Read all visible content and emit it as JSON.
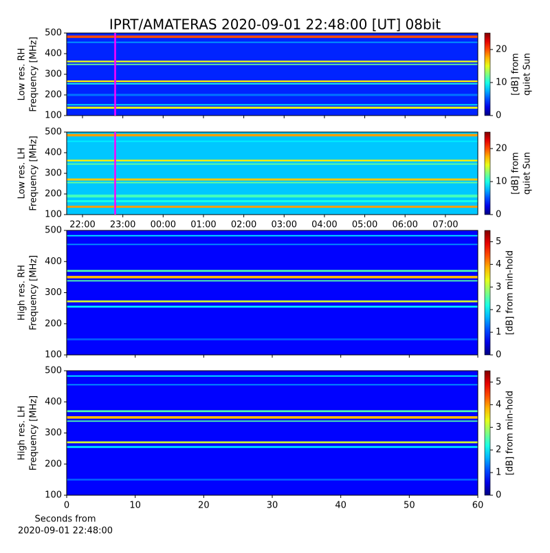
{
  "chart_data": [
    {
      "type": "heatmap",
      "title": "IPRT/AMATERAS 2020-09-01 22:48:00 [UT]   08bit",
      "ylabel": [
        "Low res. RH",
        "Frequency [MHz]"
      ],
      "ylim": [
        100,
        500
      ],
      "yticks": [
        100,
        200,
        300,
        400,
        500
      ],
      "colormap": "jet",
      "clim": [
        0,
        25
      ],
      "cticks": [
        0,
        10,
        20
      ],
      "clabel": [
        "[dB] from",
        "quiet Sun"
      ],
      "background": 4,
      "bands": [
        {
          "freq": 482,
          "width": 12,
          "level": 20
        },
        {
          "freq": 455,
          "width": 6,
          "level": 7
        },
        {
          "freq": 362,
          "width": 8,
          "level": 15
        },
        {
          "freq": 348,
          "width": 6,
          "level": 12
        },
        {
          "freq": 266,
          "width": 8,
          "level": 16
        },
        {
          "freq": 254,
          "width": 6,
          "level": 10
        },
        {
          "freq": 200,
          "width": 10,
          "level": 6
        },
        {
          "freq": 152,
          "width": 6,
          "level": 9
        },
        {
          "freq": 138,
          "width": 10,
          "level": 15
        }
      ]
    },
    {
      "type": "heatmap",
      "ylabel": [
        "Low res. LH",
        "Frequency [MHz]"
      ],
      "ylim": [
        100,
        500
      ],
      "yticks": [
        100,
        200,
        300,
        400,
        500
      ],
      "xticks": [
        "22:00",
        "23:00",
        "00:00",
        "01:00",
        "02:00",
        "03:00",
        "04:00",
        "05:00",
        "06:00",
        "07:00"
      ],
      "colormap": "jet",
      "clim": [
        0,
        25
      ],
      "cticks": [
        0,
        10,
        20
      ],
      "clabel": [
        "[dB] from",
        "quiet Sun"
      ],
      "background": 8,
      "bands": [
        {
          "freq": 485,
          "width": 12,
          "level": 18
        },
        {
          "freq": 455,
          "width": 6,
          "level": 9
        },
        {
          "freq": 362,
          "width": 8,
          "level": 16
        },
        {
          "freq": 345,
          "width": 6,
          "level": 12
        },
        {
          "freq": 270,
          "width": 10,
          "level": 17
        },
        {
          "freq": 255,
          "width": 6,
          "level": 12
        },
        {
          "freq": 190,
          "width": 14,
          "level": 11
        },
        {
          "freq": 165,
          "width": 10,
          "level": 10
        },
        {
          "freq": 138,
          "width": 10,
          "level": 18
        }
      ]
    },
    {
      "type": "heatmap",
      "ylabel": [
        "High res. RH",
        "Frequency [MHz]"
      ],
      "ylim": [
        100,
        500
      ],
      "yticks": [
        100,
        200,
        300,
        400,
        500
      ],
      "colormap": "jet",
      "clim": [
        0,
        5.5
      ],
      "cticks": [
        0,
        1,
        2,
        3,
        4,
        5
      ],
      "clabel": [
        "[dB] from min-hold"
      ],
      "background": 0.7,
      "bands": [
        {
          "freq": 483,
          "width": 4,
          "level": 2
        },
        {
          "freq": 455,
          "width": 4,
          "level": 1.5
        },
        {
          "freq": 370,
          "width": 6,
          "level": 2.5
        },
        {
          "freq": 350,
          "width": 8,
          "level": 3.8
        },
        {
          "freq": 338,
          "width": 4,
          "level": 2.5
        },
        {
          "freq": 272,
          "width": 6,
          "level": 3.2
        },
        {
          "freq": 255,
          "width": 6,
          "level": 2
        },
        {
          "freq": 150,
          "width": 6,
          "level": 1.2
        }
      ]
    },
    {
      "type": "heatmap",
      "ylabel": [
        "High res. LH",
        "Frequency [MHz]"
      ],
      "ylim": [
        100,
        500
      ],
      "yticks": [
        100,
        200,
        300,
        400,
        500
      ],
      "xlim": [
        0,
        60
      ],
      "xticks": [
        0,
        10,
        20,
        30,
        40,
        50,
        60
      ],
      "xlabel": [
        "Seconds from",
        "2020-09-01 22:48:00"
      ],
      "colormap": "jet",
      "clim": [
        0,
        5.5
      ],
      "cticks": [
        0,
        1,
        2,
        3,
        4,
        5
      ],
      "clabel": [
        "[dB] from min-hold"
      ],
      "background": 0.7,
      "bands": [
        {
          "freq": 483,
          "width": 4,
          "level": 2
        },
        {
          "freq": 455,
          "width": 4,
          "level": 1.5
        },
        {
          "freq": 370,
          "width": 6,
          "level": 2.5
        },
        {
          "freq": 350,
          "width": 8,
          "level": 3.8
        },
        {
          "freq": 338,
          "width": 4,
          "level": 2.5
        },
        {
          "freq": 270,
          "width": 6,
          "level": 3.2
        },
        {
          "freq": 255,
          "width": 6,
          "level": 2
        },
        {
          "freq": 150,
          "width": 6,
          "level": 1.2
        }
      ]
    }
  ]
}
